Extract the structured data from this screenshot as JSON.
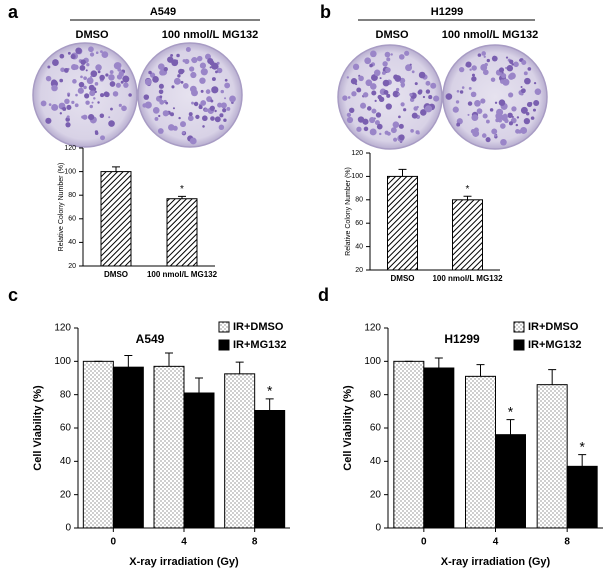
{
  "chart_data": [
    {
      "type": "bar",
      "panel_label": "a",
      "title": "A549",
      "image_labels": [
        "DMSO",
        "100 nmol/L MG132"
      ],
      "ylabel": "Relative Colony Number (%)",
      "categories": [
        "DMSO",
        "100 nmol/L MG132"
      ],
      "values": [
        100,
        77
      ],
      "errors": [
        4,
        2
      ],
      "color": "#000000",
      "pattern": "hatch",
      "ylim": [
        20,
        120
      ],
      "yticks": [
        20,
        40,
        60,
        80,
        100,
        120
      ],
      "annotations": [
        {
          "text": "*",
          "index": 1
        }
      ]
    },
    {
      "type": "bar",
      "panel_label": "b",
      "title": "H1299",
      "image_labels": [
        "DMSO",
        "100 nmol/L MG132"
      ],
      "ylabel": "Relative Colony Number (%)",
      "categories": [
        "DMSO",
        "100 nmol/L MG132"
      ],
      "values": [
        100,
        80
      ],
      "errors": [
        6,
        3
      ],
      "color": "#000000",
      "pattern": "hatch",
      "ylim": [
        20,
        120
      ],
      "yticks": [
        20,
        40,
        60,
        80,
        100,
        120
      ],
      "annotations": [
        {
          "text": "*",
          "index": 1
        }
      ]
    },
    {
      "type": "bar",
      "panel_label": "c",
      "title": "A549",
      "ylabel": "Cell Viability (%)",
      "xlabel": "X-ray irradiation (Gy)",
      "categories": [
        "0",
        "4",
        "8"
      ],
      "series": [
        {
          "name": "IR+DMSO",
          "color": "#ffffff",
          "pattern": "dots",
          "values": [
            100,
            97,
            92.5
          ],
          "errors": [
            0,
            8,
            7
          ]
        },
        {
          "name": "IR+MG132",
          "color": "#000000",
          "values": [
            96.5,
            81,
            70.5
          ],
          "errors": [
            7,
            9,
            7
          ]
        }
      ],
      "ylim": [
        0,
        120
      ],
      "yticks": [
        0,
        20,
        40,
        60,
        80,
        100,
        120
      ],
      "legend": "top-right",
      "annotations": [
        {
          "text": "*",
          "series": 1,
          "index": 2
        }
      ]
    },
    {
      "type": "bar",
      "panel_label": "d",
      "title": "H1299",
      "ylabel": "Cell Viability (%)",
      "xlabel": "X-ray irradiation (Gy)",
      "categories": [
        "0",
        "4",
        "8"
      ],
      "series": [
        {
          "name": "IR+DMSO",
          "color": "#ffffff",
          "pattern": "dots",
          "values": [
            100,
            91,
            86
          ],
          "errors": [
            0,
            7,
            9
          ]
        },
        {
          "name": "IR+MG132",
          "color": "#000000",
          "values": [
            96,
            56,
            37
          ],
          "errors": [
            6,
            9,
            7
          ]
        }
      ],
      "ylim": [
        0,
        120
      ],
      "yticks": [
        0,
        20,
        40,
        60,
        80,
        100,
        120
      ],
      "legend": "top-right",
      "annotations": [
        {
          "text": "*",
          "series": 1,
          "index": 1
        },
        {
          "text": "*",
          "series": 1,
          "index": 2
        }
      ]
    }
  ]
}
